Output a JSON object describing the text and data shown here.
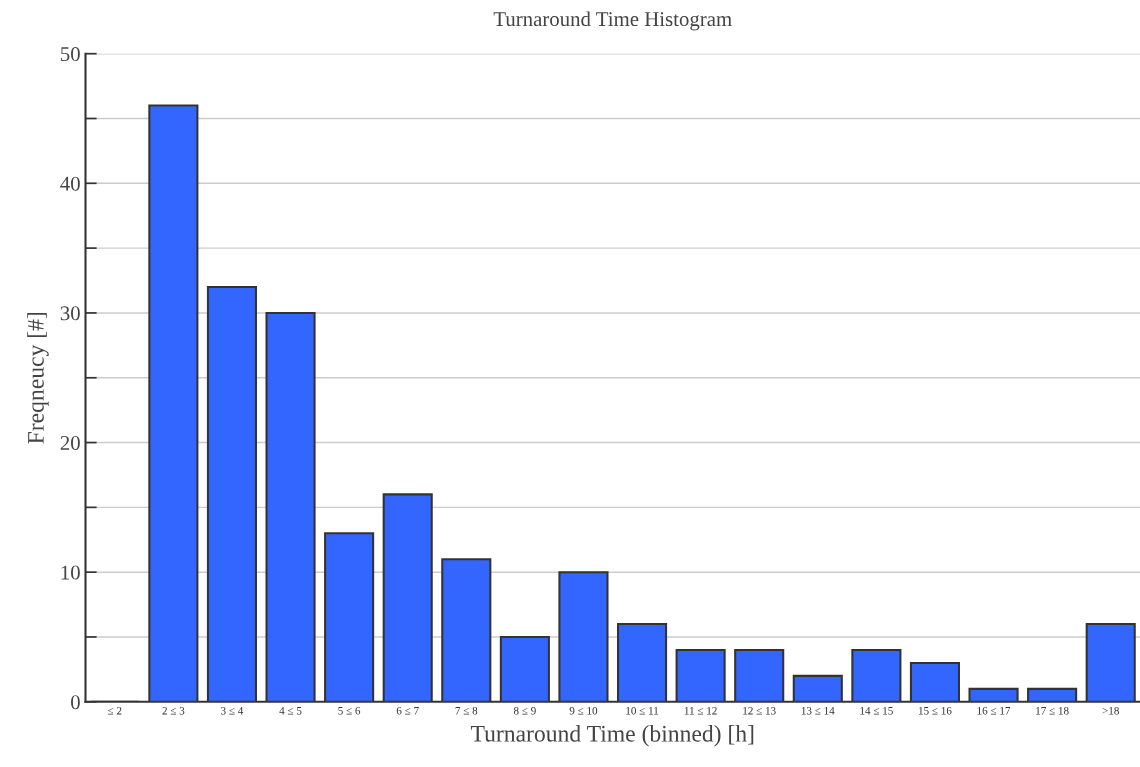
{
  "chart_data": {
    "type": "bar",
    "title": "Turnaround Time Histogram",
    "xlabel": "Turnaround Time (binned) [h]",
    "ylabel": "Freqneucy [#]",
    "categories": [
      "≤ 2",
      "2 ≤ 3",
      "3 ≤ 4",
      "4 ≤ 5",
      "5 ≤ 6",
      "6 ≤ 7",
      "7 ≤ 8",
      "8 ≤ 9",
      "9 ≤ 10",
      "10 ≤ 11",
      "11 ≤ 12",
      "12 ≤ 13",
      "13 ≤ 14",
      "14 ≤ 15",
      "15 ≤ 16",
      "16 ≤ 17",
      "17 ≤ 18",
      ">18"
    ],
    "values": [
      0,
      46,
      32,
      30,
      13,
      16,
      11,
      5,
      10,
      6,
      4,
      4,
      2,
      4,
      3,
      1,
      1,
      6
    ],
    "color": "#3366ff",
    "ylim": [
      0,
      50
    ],
    "yticks": [
      0,
      {
        "value": 5,
        "label": null
      },
      10,
      {
        "value": 15,
        "label": null
      },
      20,
      {
        "value": 25,
        "label": null
      },
      30,
      {
        "value": 35,
        "label": null
      },
      40,
      {
        "value": 45,
        "label": null
      },
      50
    ],
    "grid": "y"
  }
}
